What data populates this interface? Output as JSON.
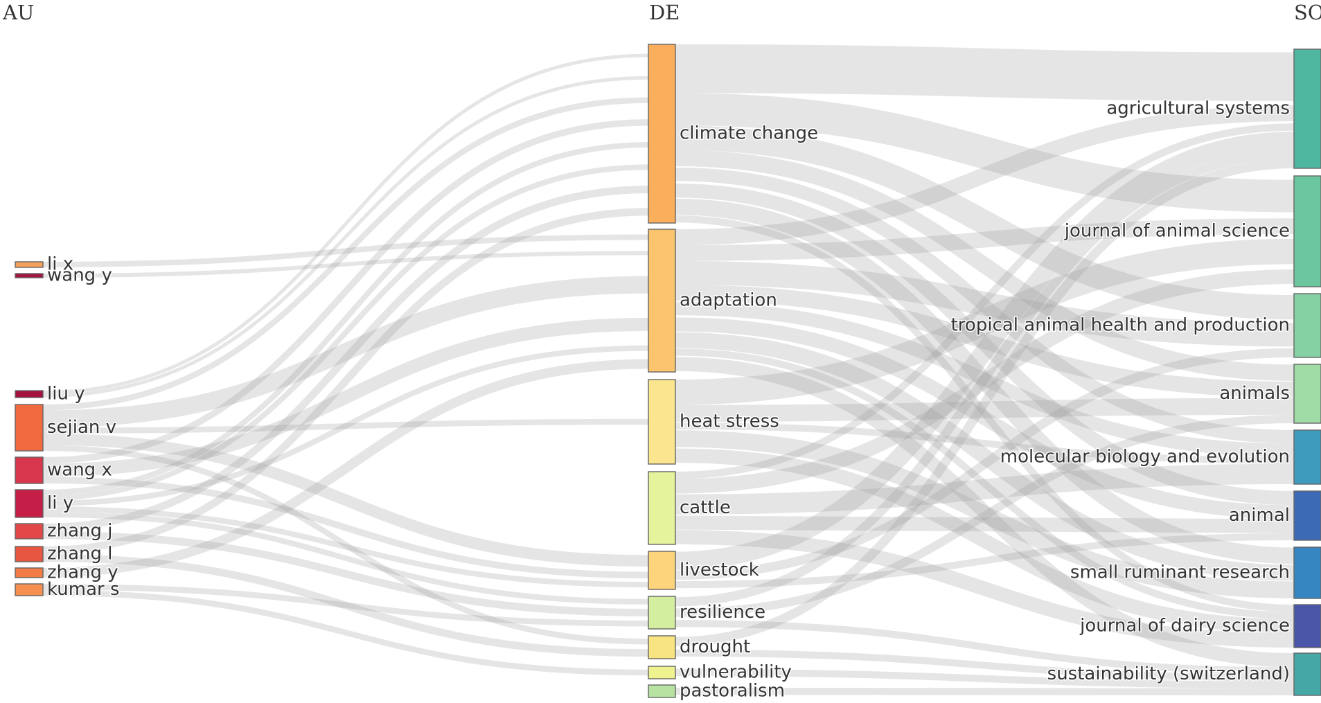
{
  "columns": [
    {
      "key": "AU",
      "title": "AU"
    },
    {
      "key": "DE",
      "title": "DE"
    },
    {
      "key": "SO",
      "title": "SO"
    }
  ],
  "link_color": "#9a9a9a",
  "nodes": {
    "AU": [
      {
        "id": "li x",
        "label": "li x",
        "color": "#f5a35b"
      },
      {
        "id": "wang y",
        "label": "wang y",
        "color": "#a0163f"
      },
      {
        "id": "liu y",
        "label": "liu y",
        "color": "#a3123f"
      },
      {
        "id": "sejian v",
        "label": "sejian v",
        "color": "#f16a3f"
      },
      {
        "id": "wang x",
        "label": "wang x",
        "color": "#d7364d"
      },
      {
        "id": "li y",
        "label": "li y",
        "color": "#c51f47"
      },
      {
        "id": "zhang j",
        "label": "zhang j",
        "color": "#e34848"
      },
      {
        "id": "zhang l",
        "label": "zhang l",
        "color": "#e75640"
      },
      {
        "id": "zhang y",
        "label": "zhang y",
        "color": "#f27a45"
      },
      {
        "id": "kumar s",
        "label": "kumar s",
        "color": "#f59050"
      }
    ],
    "DE": [
      {
        "id": "climate change",
        "label": "climate change",
        "color": "#fbae5c"
      },
      {
        "id": "adaptation",
        "label": "adaptation",
        "color": "#fcc46c"
      },
      {
        "id": "heat stress",
        "label": "heat stress",
        "color": "#fbe58f"
      },
      {
        "id": "cattle",
        "label": "cattle",
        "color": "#e5f39d"
      },
      {
        "id": "livestock",
        "label": "livestock",
        "color": "#fdd37c"
      },
      {
        "id": "resilience",
        "label": "resilience",
        "color": "#d4eea0"
      },
      {
        "id": "drought",
        "label": "drought",
        "color": "#f8e481"
      },
      {
        "id": "vulnerability",
        "label": "vulnerability",
        "color": "#eef28f"
      },
      {
        "id": "pastoralism",
        "label": "pastoralism",
        "color": "#b7e2a1"
      }
    ],
    "SO": [
      {
        "id": "agricultural systems",
        "label": "agricultural systems",
        "color": "#4fb79f"
      },
      {
        "id": "journal of animal science",
        "label": "journal of animal science",
        "color": "#6cc7a1"
      },
      {
        "id": "tropical animal health and production",
        "label": "tropical animal health and production",
        "color": "#86d1a3"
      },
      {
        "id": "animals",
        "label": "animals",
        "color": "#9fdca5"
      },
      {
        "id": "molecular biology and evolution",
        "label": "molecular biology and evolution",
        "color": "#3f9bbd"
      },
      {
        "id": "animal",
        "label": "animal",
        "color": "#3c6ab4"
      },
      {
        "id": "small ruminant research",
        "label": "small ruminant research",
        "color": "#3686c2"
      },
      {
        "id": "journal of dairy science",
        "label": "journal of dairy science",
        "color": "#4a57a9"
      },
      {
        "id": "sustainability (switzerland)",
        "label": "sustainability (switzerland)",
        "color": "#46a7a7"
      }
    ]
  },
  "links": [
    {
      "source": "li x",
      "target": "adaptation",
      "value": 1
    },
    {
      "source": "wang y",
      "target": "adaptation",
      "value": 1
    },
    {
      "source": "liu y",
      "target": "climate change",
      "value": 1
    },
    {
      "source": "liu y",
      "target": "climate change",
      "value": 1
    },
    {
      "source": "sejian v",
      "target": "adaptation",
      "value": 3
    },
    {
      "source": "sejian v",
      "target": "climate change",
      "value": 1
    },
    {
      "source": "sejian v",
      "target": "livestock",
      "value": 2
    },
    {
      "source": "sejian v",
      "target": "heat stress",
      "value": 1
    },
    {
      "source": "sejian v",
      "target": "drought",
      "value": 1
    },
    {
      "source": "wang x",
      "target": "climate change",
      "value": 1
    },
    {
      "source": "wang x",
      "target": "adaptation",
      "value": 2
    },
    {
      "source": "wang x",
      "target": "livestock",
      "value": 1
    },
    {
      "source": "li y",
      "target": "climate change",
      "value": 1
    },
    {
      "source": "li y",
      "target": "adaptation",
      "value": 1
    },
    {
      "source": "li y",
      "target": "climate change",
      "value": 1
    },
    {
      "source": "li y",
      "target": "livestock",
      "value": 1
    },
    {
      "source": "li y",
      "target": "resilience",
      "value": 1
    },
    {
      "source": "zhang j",
      "target": "climate change",
      "value": 1
    },
    {
      "source": "zhang j",
      "target": "resilience",
      "value": 1
    },
    {
      "source": "zhang l",
      "target": "climate change",
      "value": 1
    },
    {
      "source": "zhang l",
      "target": "drought",
      "value": 1
    },
    {
      "source": "zhang y",
      "target": "adaptation",
      "value": 1
    },
    {
      "source": "kumar s",
      "target": "resilience",
      "value": 1
    },
    {
      "source": "kumar s",
      "target": "vulnerability",
      "value": 1
    },
    {
      "source": "climate change",
      "target": "agricultural systems",
      "value": 6
    },
    {
      "source": "climate change",
      "target": "journal of animal science",
      "value": 4
    },
    {
      "source": "climate change",
      "target": "tropical animal health and production",
      "value": 3
    },
    {
      "source": "climate change",
      "target": "animals",
      "value": 2
    },
    {
      "source": "climate change",
      "target": "molecular biology and evolution",
      "value": 2
    },
    {
      "source": "climate change",
      "target": "animal",
      "value": 2
    },
    {
      "source": "climate change",
      "target": "small ruminant research",
      "value": 2
    },
    {
      "source": "climate change",
      "target": "journal of dairy science",
      "value": 1
    },
    {
      "source": "adaptation",
      "target": "agricultural systems",
      "value": 2
    },
    {
      "source": "adaptation",
      "target": "journal of animal science",
      "value": 2
    },
    {
      "source": "adaptation",
      "target": "tropical animal health and production",
      "value": 3
    },
    {
      "source": "adaptation",
      "target": "animals",
      "value": 2
    },
    {
      "source": "adaptation",
      "target": "molecular biology and evolution",
      "value": 2
    },
    {
      "source": "adaptation",
      "target": "animal",
      "value": 2
    },
    {
      "source": "adaptation",
      "target": "small ruminant research",
      "value": 2
    },
    {
      "source": "adaptation",
      "target": "journal of dairy science",
      "value": 1
    },
    {
      "source": "adaptation",
      "target": "sustainability (switzerland)",
      "value": 2
    },
    {
      "source": "heat stress",
      "target": "journal of animal science",
      "value": 3
    },
    {
      "source": "heat stress",
      "target": "animals",
      "value": 2
    },
    {
      "source": "heat stress",
      "target": "small ruminant research",
      "value": 2
    },
    {
      "source": "heat stress",
      "target": "journal of dairy science",
      "value": 2
    },
    {
      "source": "heat stress",
      "target": "molecular biology and evolution",
      "value": 1
    },
    {
      "source": "cattle",
      "target": "journal of animal science",
      "value": 2
    },
    {
      "source": "cattle",
      "target": "molecular biology and evolution",
      "value": 3
    },
    {
      "source": "cattle",
      "target": "animal",
      "value": 2
    },
    {
      "source": "cattle",
      "target": "journal of dairy science",
      "value": 2
    },
    {
      "source": "cattle",
      "target": "agricultural systems",
      "value": 1
    },
    {
      "source": "livestock",
      "target": "agricultural systems",
      "value": 2
    },
    {
      "source": "livestock",
      "target": "tropical animal health and production",
      "value": 1
    },
    {
      "source": "livestock",
      "target": "animal",
      "value": 1
    },
    {
      "source": "resilience",
      "target": "agricultural systems",
      "value": 1
    },
    {
      "source": "resilience",
      "target": "animals",
      "value": 1
    },
    {
      "source": "resilience",
      "target": "sustainability (switzerland)",
      "value": 1
    },
    {
      "source": "drought",
      "target": "agricultural systems",
      "value": 1
    },
    {
      "source": "drought",
      "target": "sustainability (switzerland)",
      "value": 1
    },
    {
      "source": "vulnerability",
      "target": "sustainability (switzerland)",
      "value": 1
    },
    {
      "source": "pastoralism",
      "target": "sustainability (switzerland)",
      "value": 1
    }
  ]
}
